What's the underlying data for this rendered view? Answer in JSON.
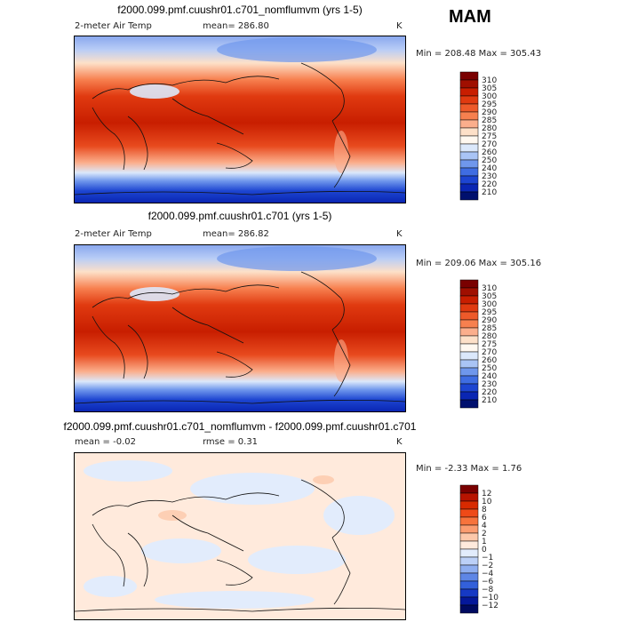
{
  "season": "MAM",
  "chart_data": [
    {
      "type": "heatmap",
      "title": "f2000.099.pmf.cuushr01.c701_nomflumvm (yrs 1-5)",
      "variable": "2-meter Air Temp",
      "mean_text": "mean= 286.80",
      "units": "K",
      "minmax_text": "Min = 208.48 Max = 305.43",
      "min": 208.48,
      "max": 305.43,
      "mean": 286.8,
      "colorbar_levels": [
        "310",
        "305",
        "300",
        "295",
        "290",
        "285",
        "280",
        "275",
        "270",
        "260",
        "250",
        "240",
        "230",
        "220",
        "210"
      ],
      "colorbar_colors": [
        "#7a0000",
        "#a00f00",
        "#c81e00",
        "#e03a10",
        "#ee5a2a",
        "#f7804f",
        "#fbae8c",
        "#fde0c8",
        "#fff8f0",
        "#dbe8fb",
        "#a9c4f5",
        "#6f97ec",
        "#3f6de2",
        "#1d45d1",
        "#0a26b3",
        "#00106e"
      ]
    },
    {
      "type": "heatmap",
      "title": "f2000.099.pmf.cuushr01.c701 (yrs 1-5)",
      "variable": "2-meter Air Temp",
      "mean_text": "mean= 286.82",
      "units": "K",
      "minmax_text": "Min = 209.06 Max = 305.16",
      "min": 209.06,
      "max": 305.16,
      "mean": 286.82,
      "colorbar_levels": [
        "310",
        "305",
        "300",
        "295",
        "290",
        "285",
        "280",
        "275",
        "270",
        "260",
        "250",
        "240",
        "230",
        "220",
        "210"
      ],
      "colorbar_colors": [
        "#7a0000",
        "#a00f00",
        "#c81e00",
        "#e03a10",
        "#ee5a2a",
        "#f7804f",
        "#fbae8c",
        "#fde0c8",
        "#fff8f0",
        "#dbe8fb",
        "#a9c4f5",
        "#6f97ec",
        "#3f6de2",
        "#1d45d1",
        "#0a26b3",
        "#00106e"
      ]
    },
    {
      "type": "heatmap",
      "title": "f2000.099.pmf.cuushr01.c701_nomflumvm - f2000.099.pmf.cuushr01.c701",
      "mean_text": "mean =   -0.02",
      "rmse_text": "rmse =    0.31",
      "units": "K",
      "minmax_text": "Min =  -2.33 Max =   1.76",
      "min": -2.33,
      "max": 1.76,
      "mean": -0.02,
      "rmse": 0.31,
      "colorbar_levels": [
        "12",
        "10",
        "8",
        "6",
        "4",
        "2",
        "1",
        "0",
        "−1",
        "−2",
        "−4",
        "−6",
        "−8",
        "−10",
        "−12"
      ],
      "colorbar_colors": [
        "#7a0000",
        "#b81400",
        "#d82a00",
        "#ee4a18",
        "#f7733c",
        "#fb9c70",
        "#fdc8aa",
        "#ffeadc",
        "#e2ecfc",
        "#bcd0f7",
        "#8faef0",
        "#5e86e6",
        "#3360da",
        "#1639c4",
        "#05189a",
        "#000a60"
      ]
    }
  ]
}
